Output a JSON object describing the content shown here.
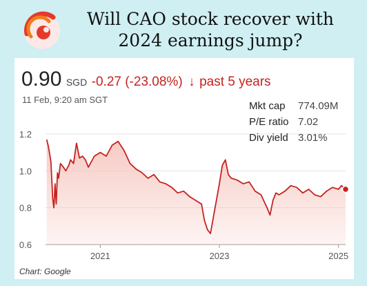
{
  "header": {
    "headline_line1": "Will CAO stock recover with",
    "headline_line2": "2024 earnings jump?",
    "logo_icon": "red-swirl-logo-icon"
  },
  "quote": {
    "price": "0.90",
    "currency": "SGD",
    "change": "-0.27 (-23.08%)",
    "direction_icon": "arrow-down-icon",
    "period": "past 5 years",
    "timestamp": "11 Feb, 9:20 am SGT"
  },
  "stats": [
    {
      "label": "Mkt cap",
      "value": "774.09M"
    },
    {
      "label": "P/E ratio",
      "value": "7.02"
    },
    {
      "label": "Div yield",
      "value": "3.01%"
    }
  ],
  "credit": "Chart: Google",
  "colors": {
    "line": "#c5221f",
    "fill": "#f6c7c0",
    "background": "#cfeff2"
  },
  "chart_data": {
    "type": "area",
    "title": "",
    "xlabel": "",
    "ylabel": "",
    "xlim": [
      2020.08,
      2025.12
    ],
    "ylim": [
      0.6,
      1.2
    ],
    "yticks": [
      {
        "value": 1.2,
        "label": "1.2"
      },
      {
        "value": 1.0,
        "label": "1.0"
      },
      {
        "value": 0.8,
        "label": "0.8"
      },
      {
        "value": 0.6,
        "label": "0.6"
      }
    ],
    "xticks": [
      {
        "value": 2021,
        "label": "2021"
      },
      {
        "value": 2023,
        "label": "2023"
      },
      {
        "value": 2025,
        "label": "2025"
      }
    ],
    "grid": true,
    "x": [
      2020.1,
      2020.13,
      2020.17,
      2020.2,
      2020.22,
      2020.24,
      2020.26,
      2020.28,
      2020.3,
      2020.33,
      2020.38,
      2020.42,
      2020.47,
      2020.5,
      2020.55,
      2020.6,
      2020.65,
      2020.7,
      2020.75,
      2020.8,
      2020.9,
      2021.0,
      2021.1,
      2021.2,
      2021.3,
      2021.4,
      2021.5,
      2021.6,
      2021.7,
      2021.8,
      2021.9,
      2022.0,
      2022.1,
      2022.2,
      2022.3,
      2022.4,
      2022.5,
      2022.6,
      2022.7,
      2022.75,
      2022.8,
      2022.85,
      2022.9,
      2022.95,
      2023.0,
      2023.05,
      2023.1,
      2023.15,
      2023.2,
      2023.3,
      2023.4,
      2023.5,
      2023.6,
      2023.7,
      2023.8,
      2023.85,
      2023.9,
      2023.95,
      2024.0,
      2024.1,
      2024.2,
      2024.3,
      2024.4,
      2024.5,
      2024.6,
      2024.7,
      2024.8,
      2024.9,
      2025.0,
      2025.05,
      2025.12
    ],
    "values": [
      1.17,
      1.13,
      1.05,
      0.85,
      0.8,
      0.93,
      0.82,
      0.99,
      0.96,
      1.04,
      1.02,
      1.0,
      1.03,
      1.06,
      1.04,
      1.15,
      1.07,
      1.08,
      1.06,
      1.02,
      1.08,
      1.1,
      1.08,
      1.14,
      1.16,
      1.11,
      1.04,
      1.01,
      0.99,
      0.96,
      0.98,
      0.94,
      0.93,
      0.91,
      0.88,
      0.89,
      0.86,
      0.84,
      0.82,
      0.73,
      0.68,
      0.66,
      0.75,
      0.84,
      0.93,
      1.03,
      1.06,
      0.98,
      0.96,
      0.95,
      0.93,
      0.94,
      0.89,
      0.87,
      0.8,
      0.76,
      0.84,
      0.88,
      0.87,
      0.89,
      0.92,
      0.91,
      0.88,
      0.9,
      0.87,
      0.86,
      0.89,
      0.91,
      0.9,
      0.92,
      0.9
    ]
  }
}
